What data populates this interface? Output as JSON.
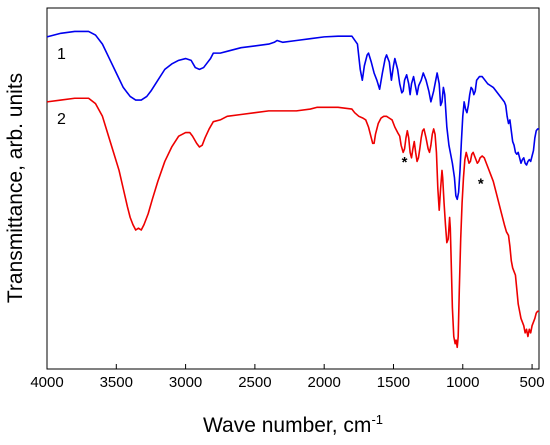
{
  "chart_data": {
    "type": "line",
    "xlabel": "Wave number, cm",
    "xlabel_sup": "-1",
    "ylabel": "Transmittance, arb. units",
    "xlim": [
      4000,
      450
    ],
    "ylim": [
      0,
      1
    ],
    "x_reversed": true,
    "y_tick_labels_shown": false,
    "grid": false,
    "xticks": [
      4000,
      3500,
      3000,
      2500,
      2000,
      1500,
      1000,
      500
    ],
    "xtick_labels": [
      "4000",
      "3500",
      "3000",
      "2500",
      "2000",
      "1500",
      "1000",
      "500"
    ],
    "series": [
      {
        "name": "1",
        "color": "#0000ee",
        "points": [
          [
            4000,
            0.92
          ],
          [
            3900,
            0.93
          ],
          [
            3800,
            0.935
          ],
          [
            3700,
            0.935
          ],
          [
            3650,
            0.925
          ],
          [
            3600,
            0.9
          ],
          [
            3550,
            0.86
          ],
          [
            3500,
            0.82
          ],
          [
            3450,
            0.78
          ],
          [
            3400,
            0.755
          ],
          [
            3360,
            0.745
          ],
          [
            3320,
            0.745
          ],
          [
            3280,
            0.755
          ],
          [
            3250,
            0.77
          ],
          [
            3200,
            0.8
          ],
          [
            3150,
            0.83
          ],
          [
            3100,
            0.845
          ],
          [
            3050,
            0.855
          ],
          [
            3000,
            0.86
          ],
          [
            2960,
            0.855
          ],
          [
            2930,
            0.835
          ],
          [
            2900,
            0.83
          ],
          [
            2870,
            0.835
          ],
          [
            2850,
            0.845
          ],
          [
            2820,
            0.86
          ],
          [
            2800,
            0.875
          ],
          [
            2750,
            0.875
          ],
          [
            2700,
            0.88
          ],
          [
            2600,
            0.89
          ],
          [
            2500,
            0.895
          ],
          [
            2400,
            0.9
          ],
          [
            2360,
            0.905
          ],
          [
            2340,
            0.91
          ],
          [
            2300,
            0.905
          ],
          [
            2200,
            0.91
          ],
          [
            2100,
            0.915
          ],
          [
            2000,
            0.92
          ],
          [
            1900,
            0.922
          ],
          [
            1800,
            0.922
          ],
          [
            1760,
            0.9
          ],
          [
            1740,
            0.83
          ],
          [
            1725,
            0.8
          ],
          [
            1710,
            0.84
          ],
          [
            1690,
            0.87
          ],
          [
            1680,
            0.875
          ],
          [
            1660,
            0.85
          ],
          [
            1640,
            0.82
          ],
          [
            1620,
            0.8
          ],
          [
            1600,
            0.775
          ],
          [
            1580,
            0.82
          ],
          [
            1560,
            0.86
          ],
          [
            1550,
            0.87
          ],
          [
            1530,
            0.85
          ],
          [
            1515,
            0.8
          ],
          [
            1500,
            0.84
          ],
          [
            1490,
            0.86
          ],
          [
            1470,
            0.83
          ],
          [
            1455,
            0.79
          ],
          [
            1440,
            0.765
          ],
          [
            1430,
            0.77
          ],
          [
            1420,
            0.8
          ],
          [
            1405,
            0.815
          ],
          [
            1390,
            0.79
          ],
          [
            1380,
            0.76
          ],
          [
            1370,
            0.79
          ],
          [
            1355,
            0.81
          ],
          [
            1340,
            0.78
          ],
          [
            1330,
            0.76
          ],
          [
            1318,
            0.785
          ],
          [
            1300,
            0.8
          ],
          [
            1285,
            0.82
          ],
          [
            1265,
            0.8
          ],
          [
            1245,
            0.77
          ],
          [
            1230,
            0.74
          ],
          [
            1210,
            0.77
          ],
          [
            1195,
            0.8
          ],
          [
            1185,
            0.82
          ],
          [
            1170,
            0.79
          ],
          [
            1160,
            0.73
          ],
          [
            1150,
            0.74
          ],
          [
            1140,
            0.78
          ],
          [
            1130,
            0.76
          ],
          [
            1115,
            0.67
          ],
          [
            1100,
            0.62
          ],
          [
            1090,
            0.6
          ],
          [
            1075,
            0.57
          ],
          [
            1060,
            0.53
          ],
          [
            1050,
            0.48
          ],
          [
            1040,
            0.47
          ],
          [
            1030,
            0.49
          ],
          [
            1020,
            0.55
          ],
          [
            1010,
            0.63
          ],
          [
            1000,
            0.7
          ],
          [
            990,
            0.74
          ],
          [
            980,
            0.72
          ],
          [
            970,
            0.71
          ],
          [
            960,
            0.73
          ],
          [
            950,
            0.76
          ],
          [
            940,
            0.78
          ],
          [
            930,
            0.775
          ],
          [
            920,
            0.76
          ],
          [
            910,
            0.77
          ],
          [
            900,
            0.8
          ],
          [
            880,
            0.81
          ],
          [
            860,
            0.81
          ],
          [
            840,
            0.8
          ],
          [
            820,
            0.79
          ],
          [
            800,
            0.785
          ],
          [
            780,
            0.78
          ],
          [
            760,
            0.77
          ],
          [
            740,
            0.76
          ],
          [
            720,
            0.75
          ],
          [
            700,
            0.74
          ],
          [
            690,
            0.73
          ],
          [
            680,
            0.7
          ],
          [
            670,
            0.68
          ],
          [
            660,
            0.69
          ],
          [
            650,
            0.66
          ],
          [
            640,
            0.63
          ],
          [
            630,
            0.62
          ],
          [
            620,
            0.6
          ],
          [
            610,
            0.595
          ],
          [
            600,
            0.6
          ],
          [
            590,
            0.585
          ],
          [
            580,
            0.57
          ],
          [
            570,
            0.58
          ],
          [
            560,
            0.585
          ],
          [
            550,
            0.57
          ],
          [
            540,
            0.565
          ],
          [
            530,
            0.575
          ],
          [
            520,
            0.58
          ],
          [
            510,
            0.575
          ],
          [
            500,
            0.59
          ],
          [
            490,
            0.605
          ],
          [
            480,
            0.64
          ],
          [
            470,
            0.66
          ],
          [
            460,
            0.665
          ],
          [
            450,
            0.665
          ]
        ]
      },
      {
        "name": "2",
        "color": "#ee0000",
        "points": [
          [
            4000,
            0.74
          ],
          [
            3900,
            0.745
          ],
          [
            3800,
            0.75
          ],
          [
            3700,
            0.75
          ],
          [
            3650,
            0.735
          ],
          [
            3600,
            0.7
          ],
          [
            3560,
            0.65
          ],
          [
            3520,
            0.6
          ],
          [
            3480,
            0.55
          ],
          [
            3450,
            0.5
          ],
          [
            3420,
            0.45
          ],
          [
            3400,
            0.42
          ],
          [
            3380,
            0.4
          ],
          [
            3360,
            0.385
          ],
          [
            3340,
            0.39
          ],
          [
            3320,
            0.385
          ],
          [
            3300,
            0.4
          ],
          [
            3270,
            0.43
          ],
          [
            3240,
            0.47
          ],
          [
            3200,
            0.52
          ],
          [
            3150,
            0.575
          ],
          [
            3100,
            0.615
          ],
          [
            3050,
            0.645
          ],
          [
            3000,
            0.655
          ],
          [
            2970,
            0.655
          ],
          [
            2950,
            0.645
          ],
          [
            2920,
            0.625
          ],
          [
            2900,
            0.615
          ],
          [
            2880,
            0.62
          ],
          [
            2860,
            0.64
          ],
          [
            2830,
            0.665
          ],
          [
            2800,
            0.685
          ],
          [
            2750,
            0.69
          ],
          [
            2700,
            0.7
          ],
          [
            2600,
            0.705
          ],
          [
            2500,
            0.71
          ],
          [
            2400,
            0.715
          ],
          [
            2300,
            0.715
          ],
          [
            2200,
            0.715
          ],
          [
            2100,
            0.72
          ],
          [
            2050,
            0.725
          ],
          [
            2000,
            0.725
          ],
          [
            1900,
            0.725
          ],
          [
            1800,
            0.72
          ],
          [
            1780,
            0.71
          ],
          [
            1750,
            0.7
          ],
          [
            1720,
            0.695
          ],
          [
            1700,
            0.69
          ],
          [
            1680,
            0.67
          ],
          [
            1660,
            0.64
          ],
          [
            1650,
            0.625
          ],
          [
            1640,
            0.625
          ],
          [
            1630,
            0.65
          ],
          [
            1610,
            0.68
          ],
          [
            1590,
            0.695
          ],
          [
            1570,
            0.7
          ],
          [
            1550,
            0.7
          ],
          [
            1530,
            0.695
          ],
          [
            1510,
            0.69
          ],
          [
            1490,
            0.67
          ],
          [
            1470,
            0.655
          ],
          [
            1455,
            0.645
          ],
          [
            1445,
            0.62
          ],
          [
            1430,
            0.6
          ],
          [
            1420,
            0.61
          ],
          [
            1410,
            0.64
          ],
          [
            1400,
            0.66
          ],
          [
            1390,
            0.64
          ],
          [
            1380,
            0.6
          ],
          [
            1370,
            0.585
          ],
          [
            1360,
            0.61
          ],
          [
            1350,
            0.63
          ],
          [
            1340,
            0.6
          ],
          [
            1330,
            0.575
          ],
          [
            1320,
            0.585
          ],
          [
            1310,
            0.61
          ],
          [
            1300,
            0.64
          ],
          [
            1290,
            0.66
          ],
          [
            1280,
            0.665
          ],
          [
            1265,
            0.64
          ],
          [
            1250,
            0.61
          ],
          [
            1240,
            0.6
          ],
          [
            1230,
            0.62
          ],
          [
            1220,
            0.65
          ],
          [
            1210,
            0.665
          ],
          [
            1200,
            0.65
          ],
          [
            1190,
            0.6
          ],
          [
            1180,
            0.5
          ],
          [
            1170,
            0.44
          ],
          [
            1160,
            0.5
          ],
          [
            1150,
            0.55
          ],
          [
            1145,
            0.53
          ],
          [
            1135,
            0.46
          ],
          [
            1125,
            0.4
          ],
          [
            1115,
            0.35
          ],
          [
            1105,
            0.36
          ],
          [
            1095,
            0.42
          ],
          [
            1090,
            0.39
          ],
          [
            1085,
            0.32
          ],
          [
            1075,
            0.17
          ],
          [
            1065,
            0.09
          ],
          [
            1055,
            0.07
          ],
          [
            1048,
            0.08
          ],
          [
            1040,
            0.06
          ],
          [
            1033,
            0.09
          ],
          [
            1025,
            0.22
          ],
          [
            1015,
            0.36
          ],
          [
            1005,
            0.46
          ],
          [
            995,
            0.53
          ],
          [
            985,
            0.58
          ],
          [
            975,
            0.6
          ],
          [
            965,
            0.585
          ],
          [
            955,
            0.57
          ],
          [
            945,
            0.575
          ],
          [
            935,
            0.595
          ],
          [
            925,
            0.6
          ],
          [
            915,
            0.59
          ],
          [
            905,
            0.58
          ],
          [
            895,
            0.57
          ],
          [
            885,
            0.575
          ],
          [
            875,
            0.585
          ],
          [
            860,
            0.59
          ],
          [
            845,
            0.585
          ],
          [
            830,
            0.57
          ],
          [
            815,
            0.555
          ],
          [
            800,
            0.54
          ],
          [
            780,
            0.52
          ],
          [
            760,
            0.49
          ],
          [
            740,
            0.46
          ],
          [
            720,
            0.43
          ],
          [
            700,
            0.4
          ],
          [
            685,
            0.38
          ],
          [
            670,
            0.37
          ],
          [
            660,
            0.34
          ],
          [
            650,
            0.3
          ],
          [
            640,
            0.28
          ],
          [
            630,
            0.27
          ],
          [
            620,
            0.26
          ],
          [
            610,
            0.22
          ],
          [
            600,
            0.18
          ],
          [
            590,
            0.16
          ],
          [
            580,
            0.14
          ],
          [
            570,
            0.13
          ],
          [
            560,
            0.12
          ],
          [
            550,
            0.1
          ],
          [
            540,
            0.11
          ],
          [
            530,
            0.09
          ],
          [
            520,
            0.11
          ],
          [
            510,
            0.1
          ],
          [
            500,
            0.12
          ],
          [
            490,
            0.13
          ],
          [
            480,
            0.14
          ],
          [
            470,
            0.155
          ],
          [
            460,
            0.16
          ],
          [
            450,
            0.16
          ]
        ]
      }
    ],
    "annotations": [
      {
        "text": "*",
        "x": 1420,
        "y": 0.56
      },
      {
        "text": "*",
        "x": 870,
        "y": 0.5
      }
    ]
  }
}
